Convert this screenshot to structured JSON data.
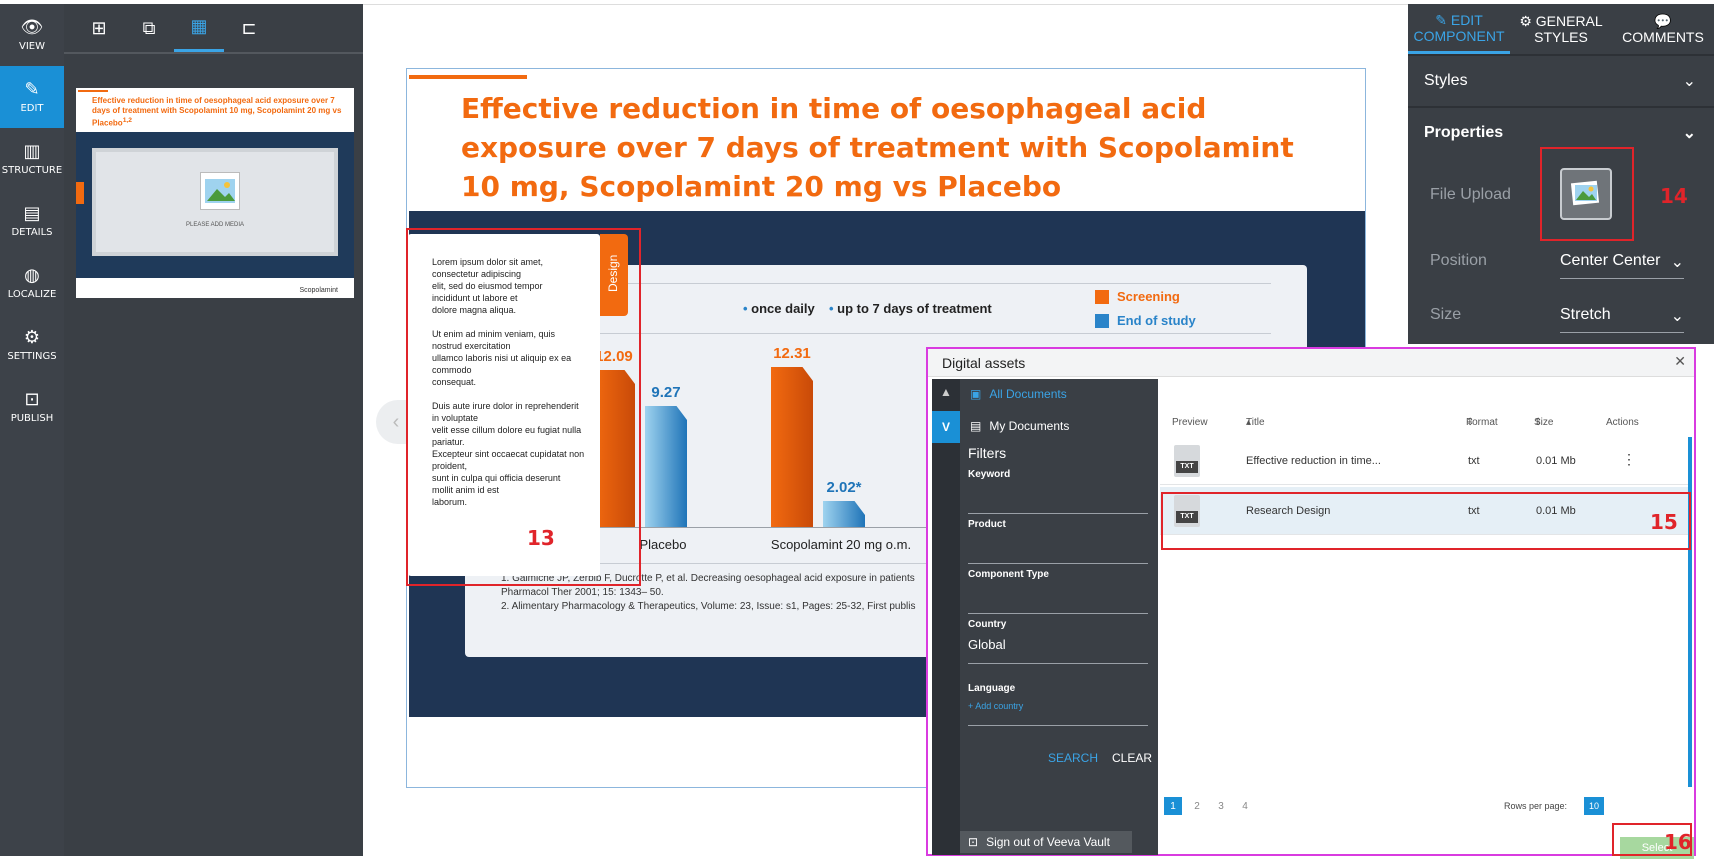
{
  "left_nav": [
    {
      "label": "VIEW",
      "icon": "eye-icon"
    },
    {
      "label": "EDIT",
      "icon": "pencil-icon"
    },
    {
      "label": "STRUCTURE",
      "icon": "structure-icon"
    },
    {
      "label": "DETAILS",
      "icon": "clipboard-icon"
    },
    {
      "label": "LOCALIZE",
      "icon": "globe-icon"
    },
    {
      "label": "SETTINGS",
      "icon": "gear-icon"
    },
    {
      "label": "PUBLISH",
      "icon": "publish-icon"
    }
  ],
  "thumbnail": {
    "title": "Effective reduction in time of oesophageal acid exposure over 7 days of treatment with Scopolamint 10 mg, Scopolamint 20 mg vs Placebo",
    "title_sup": "1,2",
    "placeholder": "PLEASE ADD MEDIA",
    "logo": "Scopolamint"
  },
  "slide": {
    "title": "Effective reduction in time of oesophageal acid exposure over 7 days of treatment with Scopolamint 10 mg, Scopolamint 20 mg vs Placebo",
    "legend_bullets": [
      "once daily",
      "up to 7 days of treatment"
    ],
    "legend_right": [
      {
        "label": "Screening",
        "color": "#f26a10"
      },
      {
        "label": "End of study",
        "color": "#2a84c9"
      }
    ],
    "references": [
      "1. Galmiche JP, Zerbib F, Ducrotte P, et al. Decreasing oesophageal acid exposure in patients",
      "Pharmacol Ther 2001;  15:  1343– 50.",
      "2. Alimentary Pharmacology & Therapeutics, Volume: 23, Issue: s1, Pages: 25-32, First publis"
    ],
    "text_popup": "Lorem ipsum dolor sit amet,\nconsectetur adipiscing\nelit, sed do eiusmod tempor\nincididunt ut labore et\ndolore magna aliqua.\n\nUt enim ad minim veniam, quis\nnostrud exercitation\nullamco laboris nisi ut aliquip ex ea\ncommodo\nconsequat.\n\nDuis aute irure dolor in reprehenderit\nin voluptate\nvelit esse cillum dolore eu fugiat nulla\npariatur.\nExcepteur sint occaecat cupidatat non\nproident,\nsunt in culpa qui officia deserunt\nmollit anim id est\nlaborum.",
    "design_tab": "Design"
  },
  "chart_data": {
    "type": "bar",
    "categories": [
      "Placebo",
      "Scopolamint 20 mg o.m."
    ],
    "series": [
      {
        "name": "Screening",
        "values": [
          12.09,
          12.31
        ]
      },
      {
        "name": "End of study",
        "values": [
          9.27,
          2.02
        ]
      }
    ],
    "value_labels": [
      [
        "12.09",
        "9.27"
      ],
      [
        "12.31",
        "2.02*"
      ]
    ],
    "ylim": [
      0,
      14
    ]
  },
  "annotations": {
    "a13": "13",
    "a14": "14",
    "a15": "15",
    "a16": "16"
  },
  "right_panel": {
    "tabs": [
      {
        "label": "EDIT COMPONENT",
        "icon": "pencil-icon"
      },
      {
        "label": "GENERAL STYLES",
        "icon": "gear-icon"
      },
      {
        "label": "COMMENTS",
        "icon": "comment-icon"
      }
    ],
    "styles_label": "Styles",
    "properties_label": "Properties",
    "file_upload_label": "File Upload",
    "position_label": "Position",
    "position_value": "Center Center",
    "size_label": "Size",
    "size_value": "Stretch"
  },
  "dialog": {
    "title": "Digital assets",
    "all_documents": "All Documents",
    "my_documents": "My Documents",
    "filters": "Filters",
    "keyword": "Keyword",
    "product": "Product",
    "component_type": "Component Type",
    "country": "Country",
    "country_value": "Global",
    "add_country": "+ Add country",
    "language": "Language",
    "search": "SEARCH",
    "clear": "CLEAR",
    "sign_out": "Sign out of Veeva Vault",
    "columns": {
      "preview": "Preview",
      "title": "Title",
      "format": "Format",
      "size": "Size",
      "actions": "Actions"
    },
    "rows": [
      {
        "title": "Effective reduction in time...",
        "format": "txt",
        "size": "0.01 Mb",
        "icon": "TXT"
      },
      {
        "title": "Research Design",
        "format": "txt",
        "size": "0.01 Mb",
        "icon": "TXT"
      }
    ],
    "pages": [
      "1",
      "2",
      "3",
      "4"
    ],
    "rows_per_page_label": "Rows per page:",
    "rows_per_page": "10",
    "select": "Select"
  }
}
